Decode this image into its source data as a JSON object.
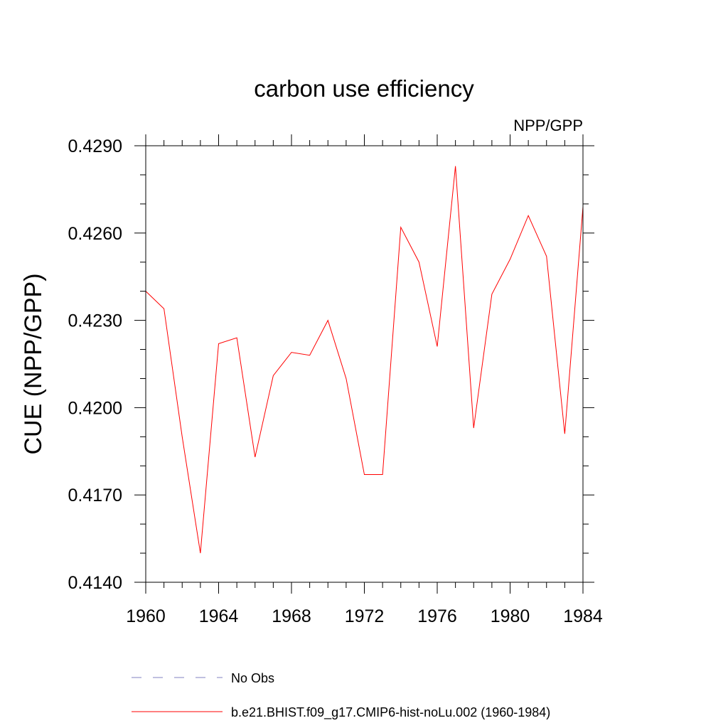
{
  "chart_data": {
    "type": "line",
    "title": "carbon use efficiency",
    "subtitle": "NPP/GPP",
    "xlabel": "",
    "ylabel": "CUE  (NPP/GPP)",
    "xlim": [
      1960,
      1984
    ],
    "ylim": [
      0.414,
      0.429
    ],
    "x_ticks": [
      "1960",
      "1964",
      "1968",
      "1972",
      "1976",
      "1980",
      "1984"
    ],
    "y_ticks": [
      "0.4140",
      "0.4170",
      "0.4200",
      "0.4230",
      "0.4260",
      "0.4290"
    ],
    "x": [
      1960,
      1961,
      1962,
      1963,
      1964,
      1965,
      1966,
      1967,
      1968,
      1969,
      1970,
      1971,
      1972,
      1973,
      1974,
      1975,
      1976,
      1977,
      1978,
      1979,
      1980,
      1981,
      1982,
      1983,
      1984
    ],
    "series": [
      {
        "name": "b.e21.BHIST.f09_g17.CMIP6-hist-noLu.002 (1960-1984)",
        "color": "#ff0000",
        "style": "solid",
        "values": [
          0.424,
          0.4234,
          0.419,
          0.415,
          0.4222,
          0.4224,
          0.4183,
          0.4211,
          0.4219,
          0.4218,
          0.423,
          0.421,
          0.4177,
          0.4177,
          0.4262,
          0.425,
          0.4221,
          0.4283,
          0.4193,
          0.4239,
          0.4251,
          0.4266,
          0.4252,
          0.4191,
          0.4269
        ]
      }
    ],
    "legend": [
      {
        "label": "No Obs",
        "color": "#8080c0",
        "style": "dashed"
      },
      {
        "label": "b.e21.BHIST.f09_g17.CMIP6-hist-noLu.002 (1960-1984)",
        "color": "#ff0000",
        "style": "solid"
      }
    ],
    "legend_position": "bottom",
    "grid": false
  }
}
